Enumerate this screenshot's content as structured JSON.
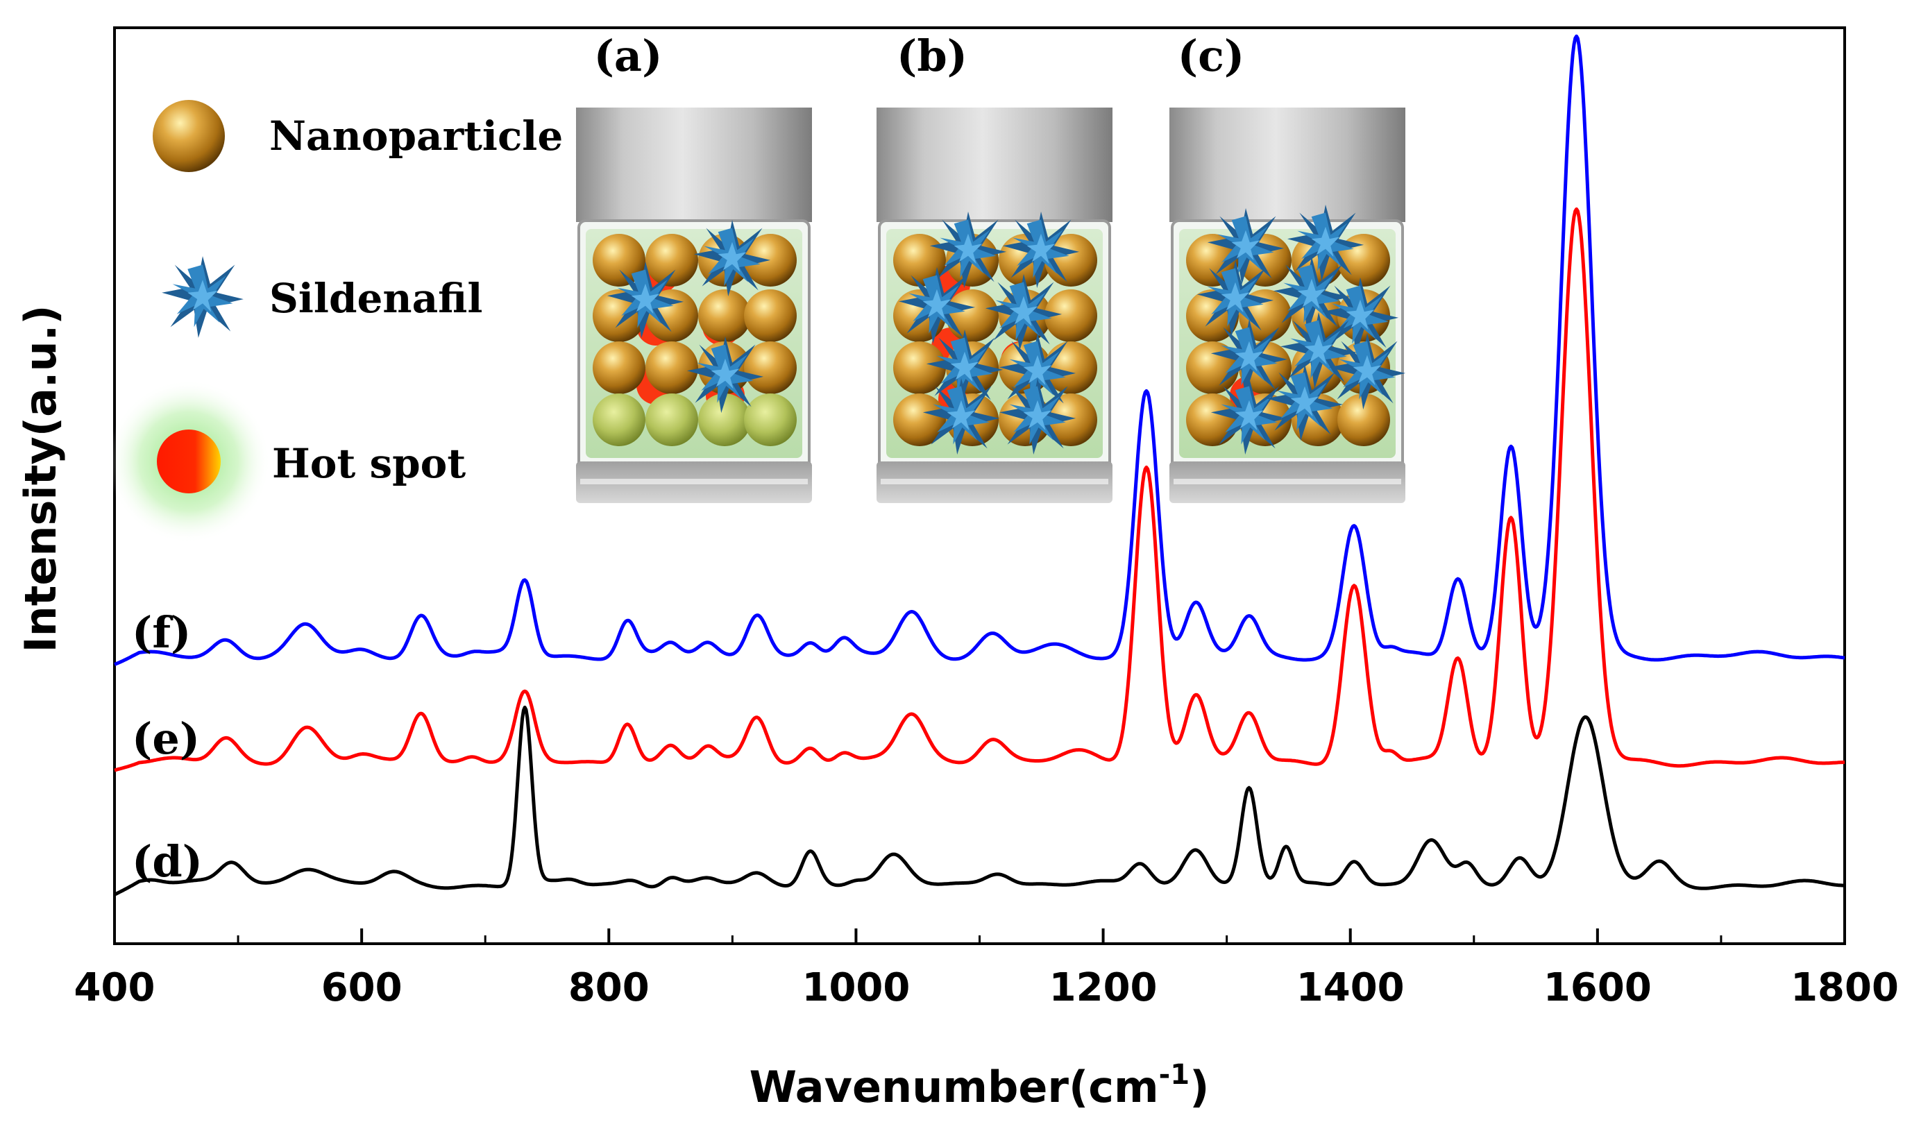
{
  "chart_data": {
    "type": "line",
    "title": "",
    "xlabel": "Wavenumber(cm",
    "xlabel_sup": "-1",
    "xlabel_close": ")",
    "ylabel": "Intensity(a.u.)",
    "xlim": [
      400,
      1800
    ],
    "x_ticks": [
      400,
      600,
      800,
      1000,
      1200,
      1400,
      1600,
      1800
    ],
    "grid": false,
    "series": [
      {
        "name": "(d)",
        "color": "#000000",
        "baseline": 0.0,
        "peaks": [
          [
            430,
            3,
            15
          ],
          [
            495,
            11,
            14
          ],
          [
            555,
            9,
            20
          ],
          [
            625,
            5,
            15
          ],
          [
            732,
            85,
            8
          ],
          [
            770,
            2,
            10
          ],
          [
            820,
            3,
            12
          ],
          [
            850,
            4,
            10
          ],
          [
            880,
            3,
            12
          ],
          [
            920,
            4,
            12
          ],
          [
            963,
            17,
            10
          ],
          [
            1000,
            3,
            10
          ],
          [
            1030,
            13,
            16
          ],
          [
            1115,
            7,
            15
          ],
          [
            1230,
            11,
            12
          ],
          [
            1275,
            18,
            14
          ],
          [
            1318,
            45,
            9
          ],
          [
            1348,
            18,
            8
          ],
          [
            1403,
            13,
            11
          ],
          [
            1465,
            21,
            15
          ],
          [
            1495,
            9,
            10
          ],
          [
            1537,
            13,
            12
          ],
          [
            1590,
            80,
            20
          ],
          [
            1650,
            10,
            14
          ]
        ]
      },
      {
        "name": "(e)",
        "color": "#ff0000",
        "baseline": 59.0,
        "peaks": [
          [
            490,
            12,
            14
          ],
          [
            555,
            16,
            17
          ],
          [
            600,
            3,
            12
          ],
          [
            648,
            25,
            12
          ],
          [
            690,
            3,
            10
          ],
          [
            732,
            32,
            11
          ],
          [
            815,
            20,
            10
          ],
          [
            850,
            7,
            10
          ],
          [
            880,
            7,
            10
          ],
          [
            920,
            22,
            12
          ],
          [
            963,
            7,
            10
          ],
          [
            990,
            5,
            10
          ],
          [
            1045,
            23,
            16
          ],
          [
            1110,
            12,
            15
          ],
          [
            1180,
            4,
            20
          ],
          [
            1235,
            142,
            13
          ],
          [
            1275,
            33,
            12
          ],
          [
            1318,
            23,
            12
          ],
          [
            1403,
            85,
            13
          ],
          [
            1433,
            5,
            8
          ],
          [
            1487,
            50,
            11
          ],
          [
            1530,
            118,
            12
          ],
          [
            1583,
            264,
            17
          ]
        ]
      },
      {
        "name": "(f)",
        "color": "#0000ff",
        "baseline": 110.0,
        "peaks": [
          [
            490,
            8,
            14
          ],
          [
            555,
            14,
            17
          ],
          [
            600,
            2,
            12
          ],
          [
            648,
            20,
            12
          ],
          [
            690,
            2,
            10
          ],
          [
            732,
            36,
            10
          ],
          [
            815,
            17,
            10
          ],
          [
            850,
            6,
            10
          ],
          [
            880,
            5,
            10
          ],
          [
            920,
            21,
            12
          ],
          [
            963,
            7,
            10
          ],
          [
            990,
            7,
            10
          ],
          [
            1045,
            21,
            16
          ],
          [
            1110,
            10,
            15
          ],
          [
            1160,
            4,
            20
          ],
          [
            1235,
            128,
            13
          ],
          [
            1275,
            24,
            12
          ],
          [
            1318,
            19,
            12
          ],
          [
            1403,
            62,
            13
          ],
          [
            1433,
            3,
            8
          ],
          [
            1487,
            38,
            11
          ],
          [
            1530,
            102,
            12
          ],
          [
            1583,
            297,
            17
          ]
        ]
      }
    ],
    "inset": {
      "panel_labels": [
        "(a)",
        "(b)",
        "(c)"
      ],
      "legend": [
        {
          "icon": "nanoparticle-sphere",
          "label": "Nanoparticle"
        },
        {
          "icon": "sildenafil-star",
          "label": "Sildenafil"
        },
        {
          "icon": "hot-spot-glow",
          "label": "Hot spot"
        }
      ]
    }
  }
}
